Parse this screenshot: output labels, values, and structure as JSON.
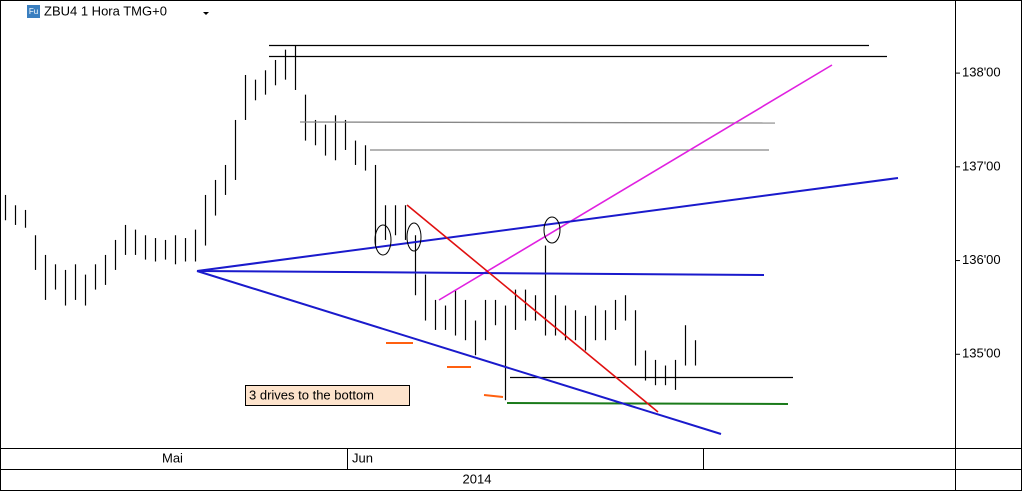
{
  "chart_data": {
    "type": "hilo",
    "title": "ZBU4 1 Hora TMG+0",
    "symbol_icon": "Fu",
    "annotation": "3 drives to the bottom",
    "period_labels": [
      "Mai",
      "Jun"
    ],
    "year_label": "2014",
    "color": "#000000",
    "ylim": [
      134.0,
      138.78
    ],
    "yticks": [
      {
        "value": 135,
        "label": "135'00"
      },
      {
        "value": 136,
        "label": "136'00"
      },
      {
        "value": 137,
        "label": "137'00"
      },
      {
        "value": 138,
        "label": "138'00"
      }
    ],
    "high": [
      136.7,
      136.59,
      136.54,
      136.27,
      136.06,
      135.96,
      135.9,
      135.96,
      135.85,
      135.96,
      136.06,
      136.22,
      136.38,
      136.33,
      136.27,
      136.24,
      136.22,
      136.27,
      136.24,
      136.33,
      136.7,
      136.86,
      137.02,
      137.5,
      137.98,
      137.93,
      138.03,
      138.14,
      138.25,
      138.3,
      137.77,
      137.5,
      137.45,
      137.55,
      137.5,
      137.28,
      137.23,
      137.02,
      136.59,
      136.59,
      136.59,
      136.27,
      135.85,
      135.58,
      135.52,
      135.69,
      135.58,
      135.36,
      135.58,
      135.58,
      135.52,
      135.69,
      135.69,
      135.63,
      136.16,
      135.63,
      135.52,
      135.47,
      135.41,
      135.52,
      135.47,
      135.58,
      135.63,
      135.47,
      135.04,
      134.94,
      134.88,
      134.94,
      135.31,
      135.15
    ],
    "low": [
      136.43,
      136.38,
      136.35,
      135.9,
      135.58,
      135.69,
      135.52,
      135.58,
      135.52,
      135.69,
      135.74,
      135.9,
      136.06,
      136.06,
      136.01,
      135.99,
      136.01,
      135.96,
      135.99,
      135.99,
      136.16,
      136.48,
      136.7,
      136.86,
      137.5,
      137.71,
      137.77,
      137.87,
      137.93,
      137.82,
      137.28,
      137.23,
      137.12,
      137.07,
      137.18,
      137.02,
      136.96,
      136.16,
      136.22,
      136.27,
      136.22,
      135.63,
      135.36,
      135.26,
      135.26,
      135.2,
      135.15,
      134.99,
      135.15,
      135.31,
      134.51,
      135.26,
      135.36,
      135.36,
      135.2,
      135.2,
      135.15,
      135.15,
      135.04,
      135.15,
      135.15,
      135.26,
      135.36,
      134.88,
      134.72,
      134.67,
      134.67,
      134.62,
      134.88,
      134.88
    ]
  }
}
